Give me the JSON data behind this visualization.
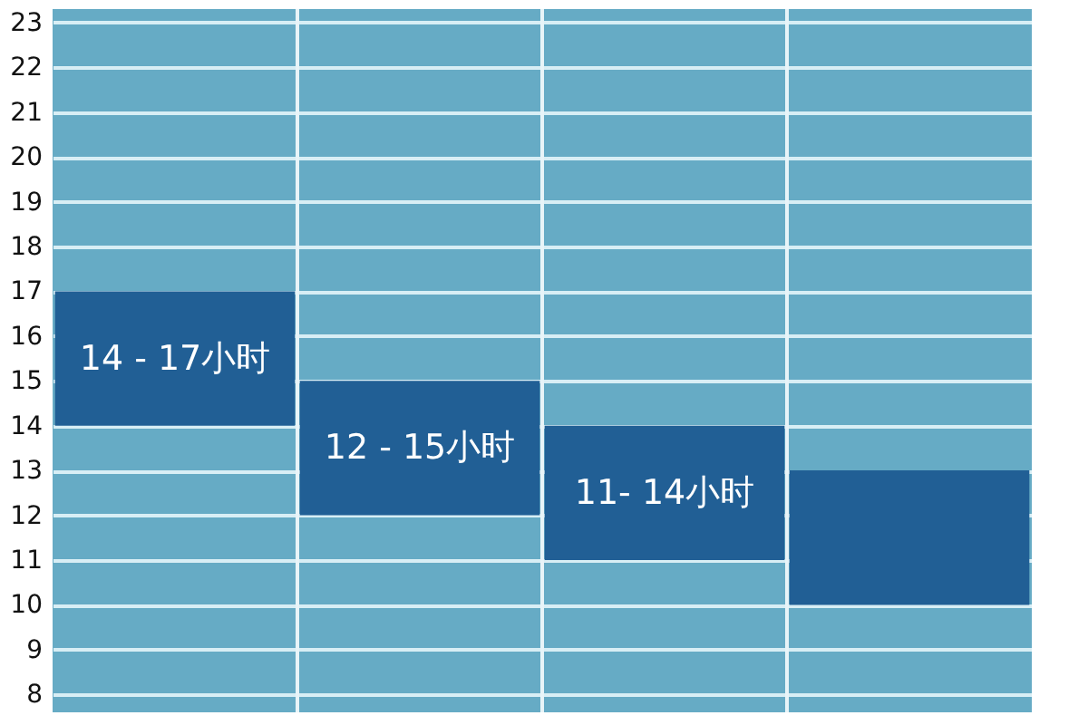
{
  "chart_data": {
    "type": "bar",
    "categories": [
      null,
      null,
      null,
      null
    ],
    "base": [
      14,
      12,
      11,
      10
    ],
    "values": [
      3,
      3,
      3,
      3
    ],
    "color": "#215f95",
    "annotations": [
      "14 - 17小时",
      "12 - 15小时",
      "11- 14小时"
    ],
    "ylim": [
      7.6,
      23.3
    ],
    "yticks": [
      8,
      9,
      10,
      11,
      12,
      13,
      14,
      15,
      16,
      17,
      18,
      19,
      20,
      21,
      22,
      23
    ],
    "grid": "y",
    "tick_labels": "y"
  }
}
